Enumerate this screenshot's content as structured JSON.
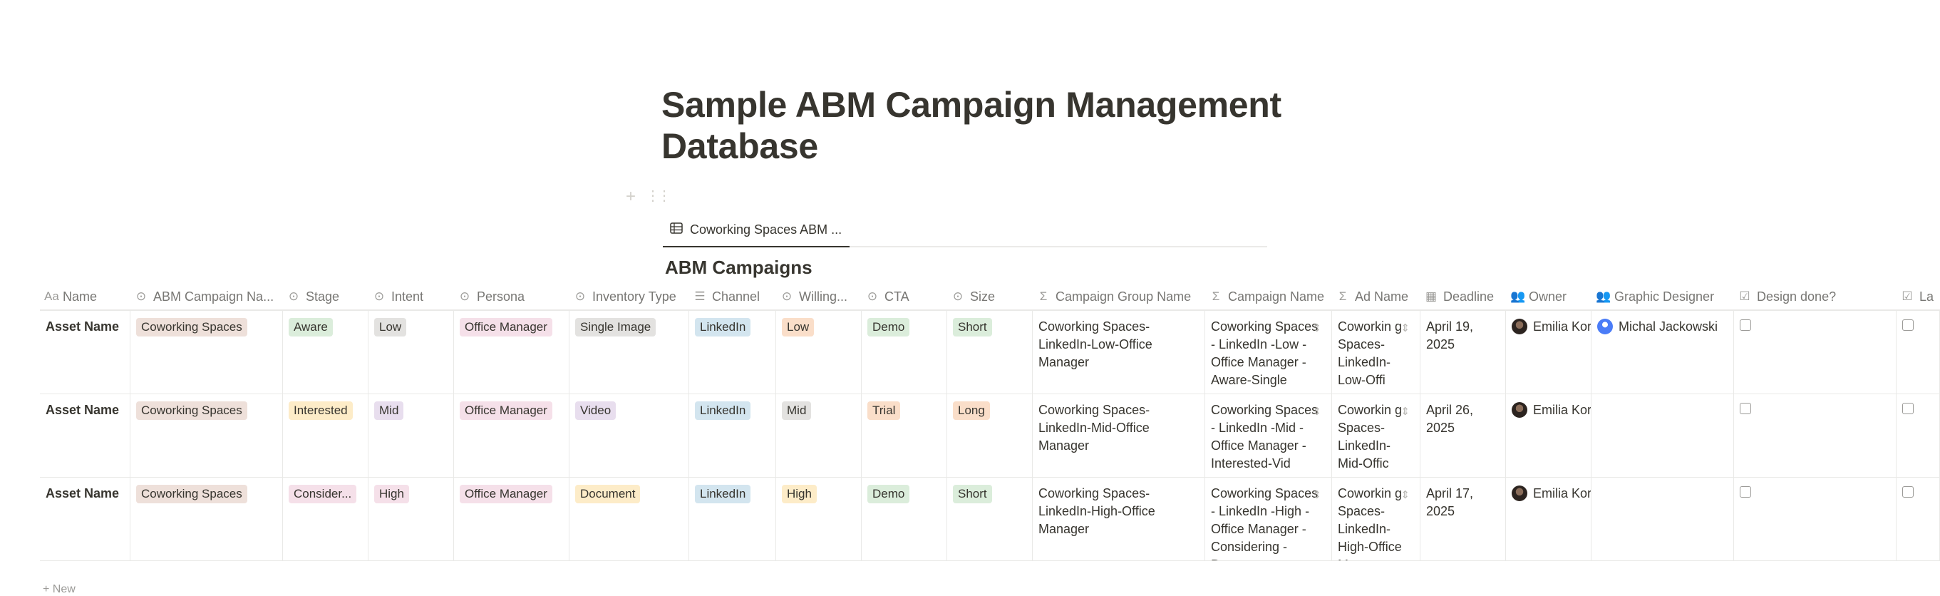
{
  "page": {
    "title": "Sample ABM Campaign Management Database"
  },
  "view": {
    "tab_label": "Coworking Spaces ABM ...",
    "database_title": "ABM Campaigns"
  },
  "columns": [
    {
      "label": "Name",
      "icon": "text-icon"
    },
    {
      "label": "ABM Campaign Na...",
      "icon": "select-icon"
    },
    {
      "label": "Stage",
      "icon": "select-icon"
    },
    {
      "label": "Intent",
      "icon": "select-icon"
    },
    {
      "label": "Persona",
      "icon": "select-icon"
    },
    {
      "label": "Inventory Type",
      "icon": "select-icon"
    },
    {
      "label": "Channel",
      "icon": "multi-select-icon"
    },
    {
      "label": "Willing...",
      "icon": "select-icon"
    },
    {
      "label": "CTA",
      "icon": "select-icon"
    },
    {
      "label": "Size",
      "icon": "select-icon"
    },
    {
      "label": "Campaign Group Name",
      "icon": "formula-icon"
    },
    {
      "label": "Campaign Name",
      "icon": "formula-icon"
    },
    {
      "label": "Ad Name",
      "icon": "formula-icon"
    },
    {
      "label": "Deadline",
      "icon": "calendar-icon"
    },
    {
      "label": "Owner",
      "icon": "person-icon"
    },
    {
      "label": "Graphic Designer",
      "icon": "person-icon"
    },
    {
      "label": "Design done?",
      "icon": "checkbox-icon"
    },
    {
      "label": "La",
      "icon": "checkbox-icon"
    }
  ],
  "rows": [
    {
      "name": "Asset Name",
      "abm_campaign": "Coworking Spaces",
      "stage": "Aware",
      "intent": "Low",
      "persona": "Office Manager",
      "inventory_type": "Single Image",
      "channel": "LinkedIn",
      "willingness": "Low",
      "cta": "Demo",
      "size": "Short",
      "campaign_group_name": "Coworking Spaces-LinkedIn-Low-Office Manager",
      "campaign_name": "Coworking Spaces - LinkedIn -Low - Office Manager - Aware-Single",
      "ad_name": "Coworkin g Spaces-LinkedIn-Low-Offi",
      "deadline": "April 19, 2025",
      "owner": "Emilia Kor",
      "graphic_designer": "Michal Jackowski"
    },
    {
      "name": "Asset Name",
      "abm_campaign": "Coworking Spaces",
      "stage": "Interested",
      "intent": "Mid",
      "persona": "Office Manager",
      "inventory_type": "Video",
      "channel": "LinkedIn",
      "willingness": "Mid",
      "cta": "Trial",
      "size": "Long",
      "campaign_group_name": "Coworking Spaces-LinkedIn-Mid-Office Manager",
      "campaign_name": "Coworking Spaces - LinkedIn -Mid - Office Manager - Interested-Vid",
      "ad_name": "Coworkin g Spaces-LinkedIn-Mid-Offic",
      "deadline": "April 26, 2025",
      "owner": "Emilia Kor",
      "graphic_designer": ""
    },
    {
      "name": "Asset Name",
      "abm_campaign": "Coworking Spaces",
      "stage": "Consider...",
      "intent": "High",
      "persona": "Office Manager",
      "inventory_type": "Document",
      "channel": "LinkedIn",
      "willingness": "High",
      "cta": "Demo",
      "size": "Short",
      "campaign_group_name": "Coworking Spaces-LinkedIn-High-Office Manager",
      "campaign_name": "Coworking Spaces - LinkedIn -High - Office Manager - Considering - Docum",
      "ad_name": "Coworkin g Spaces-LinkedIn-High-Office Ma",
      "deadline": "April 17, 2025",
      "owner": "Emilia Kor",
      "graphic_designer": ""
    }
  ],
  "footer": {
    "new_label": "+ New"
  },
  "colors": {
    "tag_brown": "#eee0da",
    "tag_green": "#dbeddb",
    "tag_gray": "#e3e2e0",
    "tag_pink": "#f5e0e9",
    "tag_blue": "#d3e5ef",
    "tag_orange": "#fadec9",
    "tag_yellow": "#fdecc8",
    "tag_purple": "#e8deee",
    "tag_red": "#ffe2dd"
  }
}
